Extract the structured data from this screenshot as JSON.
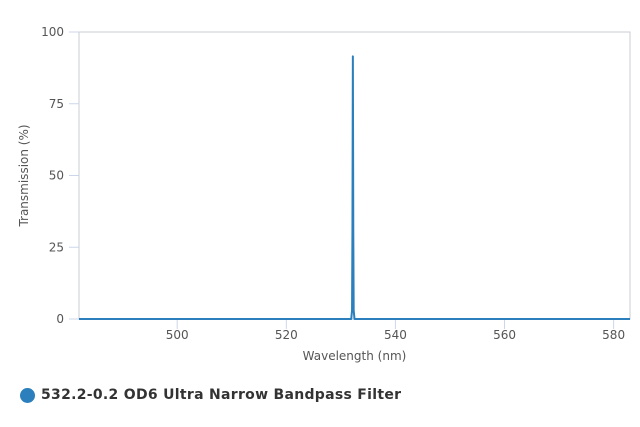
{
  "chart_data": {
    "type": "line",
    "title": "",
    "xlabel": "Wavelength (nm)",
    "ylabel": "Transmission (%)",
    "xlim": [
      482,
      583
    ],
    "ylim": [
      0,
      100
    ],
    "xticks": [
      500,
      520,
      540,
      560,
      580
    ],
    "yticks": [
      0,
      25,
      50,
      75,
      100
    ],
    "grid": false,
    "legend_position": "bottom-left",
    "series": [
      {
        "name": "532.2-0.2 OD6 Ultra Narrow Bandpass Filter",
        "color": "#2b7fbd",
        "x": [
          482,
          531.9,
          532.05,
          532.12,
          532.2,
          532.28,
          532.35,
          532.5,
          583
        ],
        "y": [
          0,
          0,
          3,
          30,
          91.5,
          30,
          3,
          0,
          0
        ]
      }
    ]
  }
}
